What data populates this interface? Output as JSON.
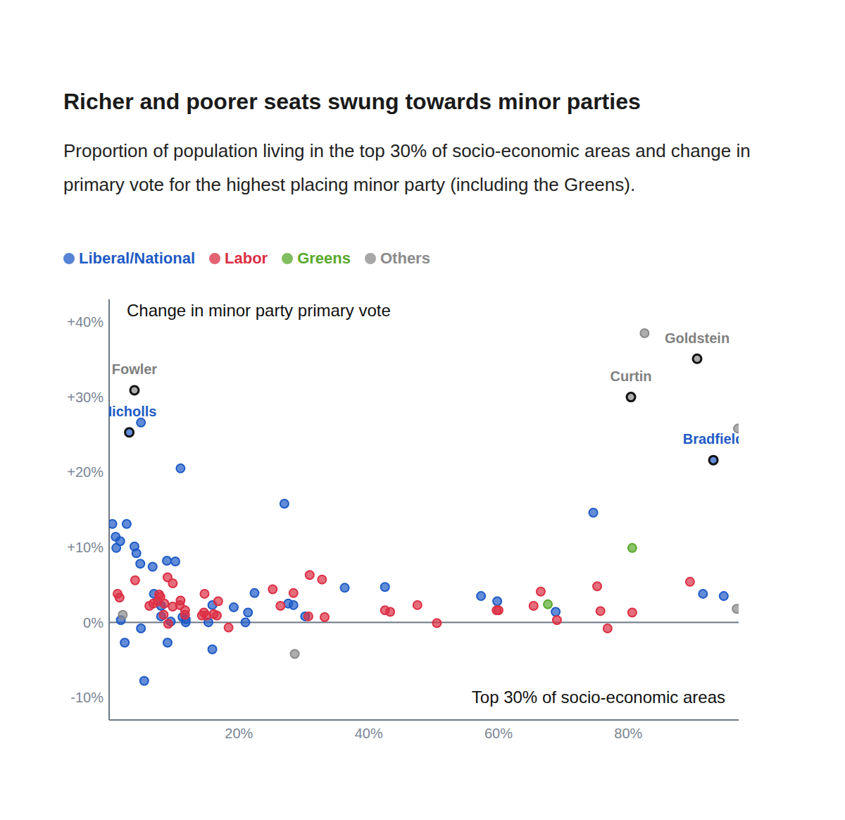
{
  "chart_data": {
    "type": "scatter",
    "title": "Richer and poorer seats swung towards minor parties",
    "subtitle": "Proportion of population living in the top 30% of socio-economic areas and change in primary vote for the highest placing minor party (including the Greens).",
    "x_label": "Top 30% of socio-economic areas",
    "y_label": "Change in minor party primary vote",
    "xlim": [
      0,
      97
    ],
    "ylim": [
      -13,
      43
    ],
    "xticks": [
      {
        "value": 20,
        "label": "20%"
      },
      {
        "value": 40,
        "label": "40%"
      },
      {
        "value": 60,
        "label": "60%"
      },
      {
        "value": 80,
        "label": "80%"
      }
    ],
    "yticks": [
      {
        "value": -10,
        "label": "-10%"
      },
      {
        "value": 0,
        "label": "0%"
      },
      {
        "value": 10,
        "label": "+10%"
      },
      {
        "value": 20,
        "label": "+20%"
      },
      {
        "value": 30,
        "label": "+30%"
      },
      {
        "value": 40,
        "label": "+40%"
      }
    ],
    "grid": false,
    "legend": "top-left",
    "series": [
      {
        "name": "Liberal/National",
        "color": "#1f5bc6",
        "marker": "circle",
        "x": [
          4.9,
          11.0,
          27.0,
          74.6,
          0.5,
          2.7,
          1.0,
          1.7,
          1.1,
          3.9,
          4.2,
          4.8,
          6.7,
          8.9,
          10.2,
          6.9,
          8.0,
          8.0,
          9.5,
          1.8,
          4.9,
          2.4,
          9.0,
          5.4,
          11.3,
          11.8,
          11.8,
          15.9,
          15.3,
          15.9,
          19.2,
          21.0,
          21.4,
          22.4,
          27.6,
          28.4,
          30.2,
          36.3,
          42.5,
          57.3,
          59.8,
          68.8,
          91.5,
          94.7
        ],
        "values": [
          26.6,
          20.5,
          15.8,
          14.6,
          13.1,
          13.1,
          11.4,
          10.8,
          9.9,
          10.1,
          9.2,
          7.8,
          7.4,
          8.2,
          8.1,
          3.8,
          2.2,
          0.8,
          0.1,
          0.3,
          -0.8,
          -2.7,
          -2.7,
          -7.8,
          0.7,
          0.4,
          0.0,
          2.3,
          0.0,
          -3.6,
          2.0,
          0.0,
          1.3,
          3.9,
          2.5,
          2.3,
          0.8,
          4.6,
          4.7,
          3.5,
          2.8,
          1.4,
          3.8,
          3.5
        ]
      },
      {
        "name": "Labor",
        "color": "#dc2f45",
        "marker": "circle",
        "x": [
          1.3,
          1.6,
          4.0,
          6.2,
          6.8,
          7.5,
          7.7,
          7.9,
          8.5,
          8.4,
          9.1,
          9.0,
          9.8,
          9.8,
          11.0,
          10.9,
          11.7,
          11.7,
          14.3,
          14.7,
          14.6,
          15.0,
          16.1,
          16.8,
          16.6,
          18.4,
          25.2,
          26.4,
          28.4,
          30.9,
          30.7,
          32.8,
          33.2,
          42.5,
          43.3,
          47.5,
          50.5,
          59.7,
          60.0,
          65.4,
          66.5,
          69.0,
          75.2,
          75.7,
          76.8,
          80.6,
          89.5
        ],
        "values": [
          3.8,
          3.3,
          5.6,
          2.2,
          2.5,
          2.8,
          3.7,
          3.4,
          2.5,
          1.0,
          -0.2,
          6.0,
          5.2,
          2.1,
          2.9,
          2.3,
          1.6,
          1.0,
          0.9,
          3.8,
          1.3,
          0.9,
          1.1,
          2.8,
          0.9,
          -0.7,
          4.4,
          2.2,
          3.9,
          6.3,
          0.8,
          5.7,
          0.7,
          1.6,
          1.4,
          2.3,
          -0.1,
          1.6,
          1.6,
          2.2,
          4.1,
          0.3,
          4.8,
          1.5,
          -0.8,
          1.3,
          5.4
        ]
      },
      {
        "name": "Greens",
        "color": "#58a92a",
        "marker": "circle",
        "x": [
          80.6,
          67.6
        ],
        "values": [
          9.9,
          2.4
        ]
      },
      {
        "name": "Others",
        "color": "#8a8a8a",
        "marker": "circle",
        "x": [
          82.5,
          96.9,
          96.7,
          28.6,
          2.1
        ],
        "values": [
          38.5,
          25.8,
          1.8,
          -4.2,
          1.0
        ]
      }
    ],
    "annotations": [
      {
        "text": "Fowler",
        "x": 3.9,
        "y": 30.9,
        "color": "#808080",
        "series": "Others"
      },
      {
        "text": "Nicholls",
        "x": 3.1,
        "y": 25.3,
        "color": "#1f5bc6",
        "series": "Liberal/National"
      },
      {
        "text": "Curtin",
        "x": 80.4,
        "y": 30.0,
        "color": "#808080",
        "series": "Others"
      },
      {
        "text": "Goldstein",
        "x": 90.6,
        "y": 35.1,
        "color": "#808080",
        "series": "Others"
      },
      {
        "text": "Bradfield",
        "x": 93.1,
        "y": 21.6,
        "color": "#1f5bc6",
        "series": "Liberal/National"
      }
    ]
  }
}
